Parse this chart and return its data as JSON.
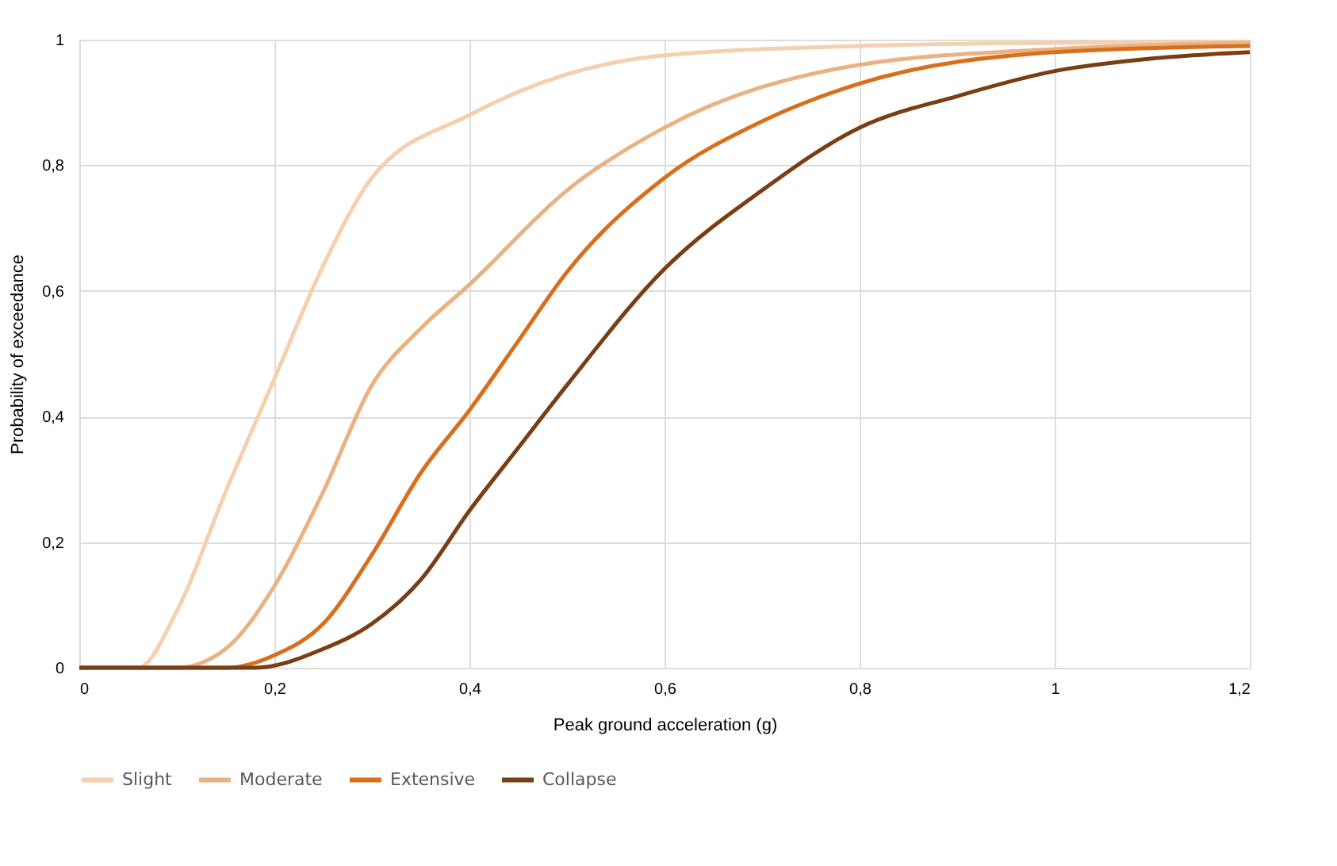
{
  "chart_data": {
    "type": "line",
    "xlabel": "Peak ground acceleration (g)",
    "ylabel": "Probability of exceedance",
    "xlim": [
      0,
      1.2
    ],
    "ylim": [
      0,
      1
    ],
    "xticks": [
      0,
      {
        "value": 0.2,
        "label": "0,2"
      },
      {
        "value": 0.4,
        "label": "0,4"
      },
      {
        "value": 0.6,
        "label": "0,6"
      },
      {
        "value": 0.8,
        "label": "0,8"
      },
      1,
      {
        "value": 1.2,
        "label": "1,2"
      }
    ],
    "yticks": [
      0,
      {
        "value": 0.2,
        "label": "0,2"
      },
      {
        "value": 0.4,
        "label": "0,4"
      },
      {
        "value": 0.6,
        "label": "0,6"
      },
      {
        "value": 0.8,
        "label": "0,8"
      },
      1
    ],
    "grid": true,
    "legend": "bottom",
    "marker": "none",
    "line_style": "solid",
    "series": [
      {
        "name": "Slight",
        "color": "#f5cfae",
        "x": [
          0,
          0.06,
          0.1,
          0.15,
          0.2,
          0.25,
          0.3,
          0.4,
          0.5,
          0.6,
          0.8,
          1.0,
          1.2
        ],
        "values": [
          0,
          0,
          0.09,
          0.28,
          0.46,
          0.64,
          0.78,
          0.88,
          0.945,
          0.975,
          0.99,
          0.995,
          0.997
        ]
      },
      {
        "name": "Moderate",
        "color": "#eab283",
        "x": [
          0,
          0.1,
          0.15,
          0.2,
          0.25,
          0.3,
          0.35,
          0.4,
          0.5,
          0.6,
          0.8,
          1.0,
          1.2
        ],
        "values": [
          0,
          0,
          0.03,
          0.13,
          0.28,
          0.45,
          0.54,
          0.61,
          0.76,
          0.86,
          0.96,
          0.985,
          0.995
        ]
      },
      {
        "name": "Extensive",
        "color": "#d86f1d",
        "x": [
          0,
          0.15,
          0.2,
          0.25,
          0.3,
          0.35,
          0.4,
          0.45,
          0.5,
          0.6,
          0.7,
          0.8,
          1.0,
          1.2
        ],
        "values": [
          0,
          0,
          0.02,
          0.07,
          0.18,
          0.31,
          0.41,
          0.52,
          0.63,
          0.78,
          0.87,
          0.93,
          0.98,
          0.99
        ]
      },
      {
        "name": "Collapse",
        "color": "#7a3e14",
        "x": [
          0,
          0.18,
          0.25,
          0.3,
          0.35,
          0.4,
          0.45,
          0.5,
          0.6,
          0.7,
          0.8,
          0.9,
          1.0,
          1.1,
          1.2
        ],
        "values": [
          0,
          0,
          0.03,
          0.07,
          0.14,
          0.25,
          0.35,
          0.45,
          0.635,
          0.76,
          0.86,
          0.91,
          0.95,
          0.97,
          0.98
        ]
      }
    ]
  }
}
